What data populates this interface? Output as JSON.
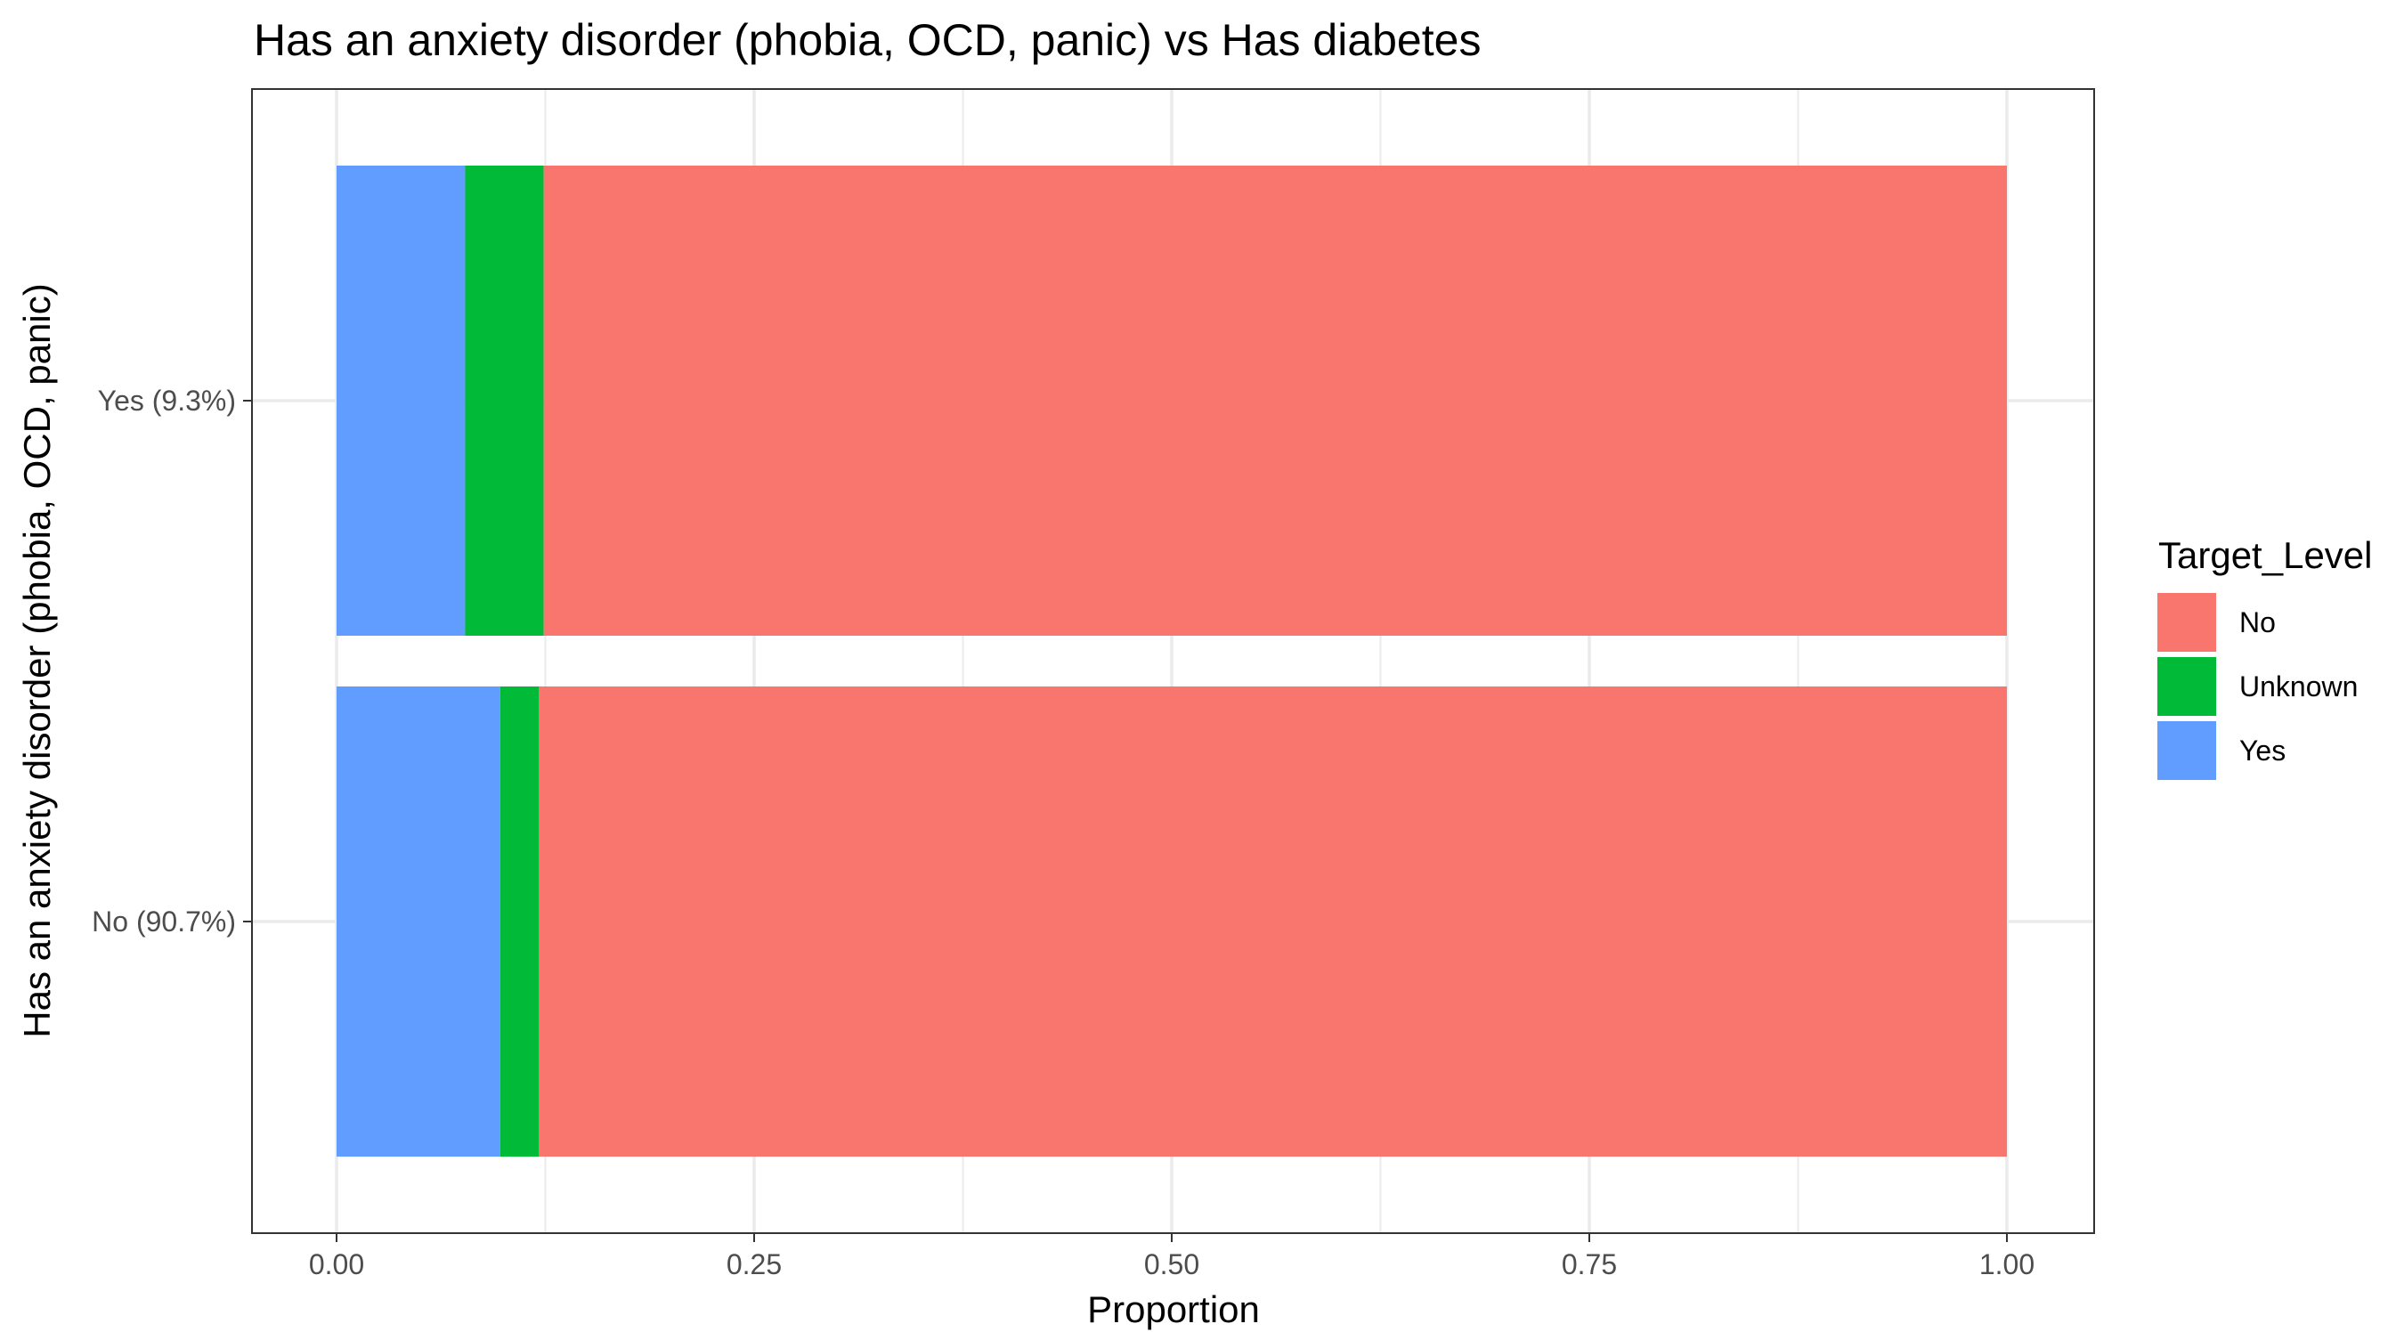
{
  "chart_data": {
    "type": "bar",
    "orientation": "horizontal",
    "stacked": true,
    "title": "Has an anxiety disorder (phobia, OCD, panic) vs Has diabetes",
    "xlabel": "Proportion",
    "ylabel": "Has an anxiety disorder (phobia, OCD, panic)",
    "categories": [
      "No (90.7%)",
      "Yes (9.3%)"
    ],
    "series": [
      {
        "name": "Yes",
        "color": "#619CFF",
        "values": [
          0.098,
          0.077
        ]
      },
      {
        "name": "Unknown",
        "color": "#00BA38",
        "values": [
          0.023,
          0.047
        ]
      },
      {
        "name": "No",
        "color": "#F8766D",
        "values": [
          0.879,
          0.876
        ]
      }
    ],
    "xlim": [
      0,
      1
    ],
    "xticks": [
      0,
      0.25,
      0.5,
      0.75,
      1
    ],
    "xtick_labels": [
      "0.00",
      "0.25",
      "0.50",
      "0.75",
      "1.00"
    ],
    "grid": true,
    "legend": {
      "title": "Target_Level",
      "position": "right",
      "entries": [
        {
          "label": "No",
          "color": "#F8766D"
        },
        {
          "label": "Unknown",
          "color": "#00BA38"
        },
        {
          "label": "Yes",
          "color": "#619CFF"
        }
      ]
    }
  }
}
